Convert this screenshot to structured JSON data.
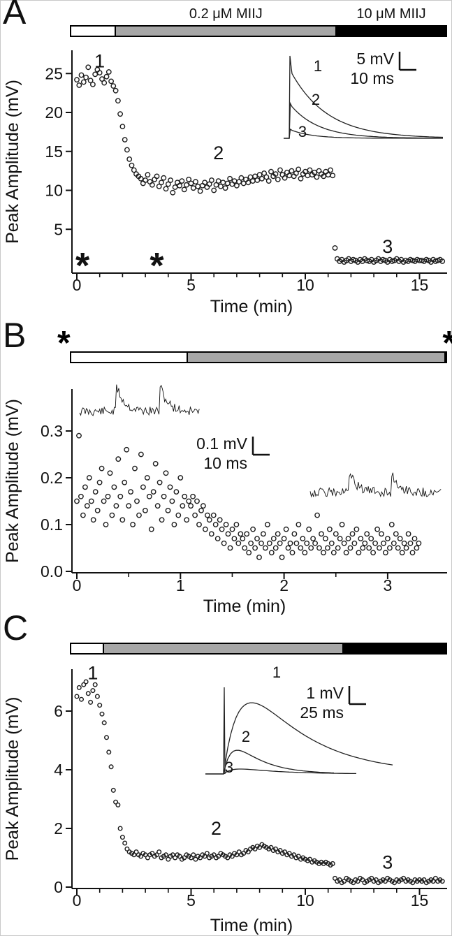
{
  "panels": [
    {
      "letter": "A",
      "asterisks_above_bar": []
    },
    {
      "letter": "B",
      "asterisks_above_bar": [
        "*",
        "*"
      ]
    },
    {
      "letter": "C",
      "asterisks_above_bar": []
    }
  ],
  "chart_data": [
    {
      "panel": "A",
      "type": "scatter",
      "marker": "open-circle",
      "xlabel": "Time (min)",
      "ylabel": "Peak Amplitude (mV)",
      "xlim": [
        0,
        16.2
      ],
      "ylim": [
        0,
        28
      ],
      "xticks": [
        0,
        5,
        10,
        15
      ],
      "xminor_step": 1,
      "yticks": [
        5,
        10,
        15,
        20,
        25
      ],
      "x_start": 0,
      "x_step": 0.1,
      "values": [
        24.2,
        23.5,
        24.8,
        23.9,
        24.5,
        25.8,
        24.1,
        23.6,
        24.9,
        25.5,
        25.1,
        24.3,
        23.8,
        24.6,
        25.2,
        24.0,
        23.4,
        22.8,
        21.5,
        19.8,
        18.2,
        16.5,
        15.2,
        14.0,
        13.2,
        12.6,
        12.1,
        11.8,
        11.5,
        10.9,
        11.3,
        12.0,
        11.1,
        10.7,
        11.4,
        11.8,
        10.5,
        11.0,
        11.6,
        10.2,
        10.8,
        11.3,
        9.7,
        10.4,
        11.0,
        10.6,
        11.2,
        10.1,
        10.7,
        11.4,
        10.9,
        10.3,
        11.1,
        10.5,
        9.9,
        10.6,
        11.0,
        10.4,
        10.8,
        11.3,
        10.0,
        10.7,
        11.2,
        10.5,
        11.0,
        10.3,
        10.9,
        11.5,
        10.8,
        11.2,
        10.6,
        11.1,
        11.6,
        10.9,
        11.4,
        11.0,
        11.7,
        11.2,
        11.8,
        11.3,
        12.0,
        11.5,
        12.2,
        11.7,
        11.2,
        12.4,
        11.8,
        12.1,
        11.4,
        12.6,
        12.0,
        11.6,
        12.3,
        11.9,
        12.5,
        11.8,
        12.2,
        12.7,
        11.5,
        12.1,
        12.4,
        11.9,
        12.6,
        12.0,
        12.3,
        11.7,
        12.5,
        12.1,
        11.8,
        12.4,
        12.0,
        12.6,
        11.9,
        2.6,
        1.2,
        0.9,
        1.1,
        0.8,
        1.0,
        1.2,
        0.9,
        1.1,
        1.0,
        0.8,
        1.1,
        0.9,
        1.2,
        1.0,
        0.9,
        1.1,
        0.8,
        1.0,
        1.2,
        0.9,
        1.1,
        1.0,
        0.8,
        1.1,
        0.9,
        1.0,
        1.2,
        0.9,
        1.1,
        0.8,
        1.0,
        0.9,
        1.1,
        1.0,
        0.9,
        1.1,
        1.0,
        1.0,
        0.9,
        1.1,
        1.0,
        0.8,
        1.1,
        0.9,
        1.0,
        1.1,
        0.9
      ],
      "condition_bar": {
        "segments": [
          {
            "label": "",
            "fill": "#ffffff",
            "frac": 0.117
          },
          {
            "label": "0.2 μM MIIJ",
            "fill": "#a7a7a7",
            "frac": 0.592
          },
          {
            "label": "10 μM MIIJ",
            "fill": "#000000",
            "frac": 0.291
          }
        ]
      },
      "annotations": [
        {
          "text": "1",
          "x": 1.0,
          "y": 26.6
        },
        {
          "text": "2",
          "x": 6.2,
          "y": 14.8
        },
        {
          "text": "3",
          "x": 13.6,
          "y": 2.8
        },
        {
          "text": "*",
          "x": 0.25,
          "y": 1.0,
          "kind": "asterisk"
        },
        {
          "text": "*",
          "x": 3.5,
          "y": 1.0,
          "kind": "asterisk"
        }
      ],
      "inset": {
        "trace_labels": [
          "1",
          "2",
          "3"
        ],
        "scale_bar": {
          "vertical": "5 mV",
          "horizontal": "10 ms"
        }
      }
    },
    {
      "panel": "B",
      "type": "scatter",
      "marker": "open-circle",
      "xlabel": "Time (min)",
      "ylabel": "Peak Amplitude (mV)",
      "xlim": [
        0,
        3.35
      ],
      "ylim": [
        0,
        0.38
      ],
      "xticks": [
        0,
        1,
        2,
        3
      ],
      "xminor_step": 0.5,
      "yticks": [
        0.0,
        0.1,
        0.2,
        0.3
      ],
      "ytick_decimals": 1,
      "x_start": 0,
      "x_step": 0.02,
      "values": [
        0.15,
        0.29,
        0.16,
        0.12,
        0.18,
        0.14,
        0.2,
        0.15,
        0.11,
        0.17,
        0.13,
        0.19,
        0.22,
        0.15,
        0.1,
        0.16,
        0.21,
        0.12,
        0.18,
        0.14,
        0.24,
        0.16,
        0.11,
        0.19,
        0.26,
        0.14,
        0.17,
        0.1,
        0.22,
        0.15,
        0.12,
        0.25,
        0.18,
        0.13,
        0.2,
        0.16,
        0.09,
        0.17,
        0.23,
        0.14,
        0.19,
        0.11,
        0.16,
        0.21,
        0.13,
        0.18,
        0.15,
        0.1,
        0.17,
        0.12,
        0.2,
        0.14,
        0.16,
        0.11,
        0.15,
        0.14,
        0.16,
        0.12,
        0.15,
        0.1,
        0.13,
        0.14,
        0.09,
        0.12,
        0.11,
        0.08,
        0.12,
        0.1,
        0.07,
        0.11,
        0.09,
        0.06,
        0.1,
        0.08,
        0.05,
        0.09,
        0.07,
        0.1,
        0.06,
        0.08,
        0.07,
        0.05,
        0.08,
        0.04,
        0.06,
        0.09,
        0.05,
        0.07,
        0.03,
        0.06,
        0.08,
        0.05,
        0.1,
        0.06,
        0.04,
        0.07,
        0.05,
        0.08,
        0.06,
        0.03,
        0.07,
        0.09,
        0.05,
        0.06,
        0.04,
        0.08,
        0.06,
        0.1,
        0.05,
        0.07,
        0.04,
        0.06,
        0.09,
        0.05,
        0.07,
        0.06,
        0.12,
        0.05,
        0.08,
        0.04,
        0.07,
        0.05,
        0.09,
        0.06,
        0.04,
        0.08,
        0.05,
        0.07,
        0.1,
        0.06,
        0.04,
        0.07,
        0.05,
        0.08,
        0.06,
        0.09,
        0.04,
        0.07,
        0.05,
        0.06,
        0.08,
        0.05,
        0.07,
        0.04,
        0.06,
        0.09,
        0.05,
        0.08,
        0.06,
        0.04,
        0.07,
        0.05,
        0.1,
        0.06,
        0.08,
        0.05,
        0.07,
        0.04,
        0.06,
        0.05,
        0.08,
        0.06,
        0.04,
        0.07,
        0.05,
        0.06
      ],
      "condition_bar": {
        "segments": [
          {
            "label": "",
            "fill": "#ffffff",
            "frac": 0.311
          },
          {
            "label": "",
            "fill": "#a7a7a7",
            "frac": 0.689
          }
        ]
      },
      "annotations": [],
      "inset": {
        "trace_labels": [],
        "scale_bar": {
          "vertical": "0.1 mV",
          "horizontal": "10 ms"
        }
      }
    },
    {
      "panel": "C",
      "type": "scatter",
      "marker": "open-circle",
      "xlabel": "Time (min)",
      "ylabel": "Peak Amplitude (mV)",
      "xlim": [
        0,
        16.2
      ],
      "ylim": [
        0,
        7.6
      ],
      "xticks": [
        0,
        5,
        10,
        15
      ],
      "xminor_step": 1,
      "yticks": [
        0,
        2,
        4,
        6
      ],
      "x_start": 0,
      "x_step": 0.1,
      "values": [
        6.5,
        6.8,
        6.4,
        6.9,
        7.0,
        6.6,
        6.3,
        6.7,
        6.9,
        6.5,
        6.2,
        5.9,
        5.6,
        5.1,
        4.6,
        4.1,
        3.3,
        2.9,
        2.8,
        2.0,
        1.7,
        1.5,
        1.3,
        1.2,
        1.15,
        1.1,
        1.2,
        1.1,
        1.05,
        1.15,
        1.1,
        1.0,
        1.1,
        1.15,
        1.05,
        1.1,
        1.2,
        1.0,
        1.05,
        1.1,
        0.95,
        1.05,
        1.1,
        1.0,
        1.1,
        1.05,
        0.95,
        1.0,
        1.1,
        1.05,
        1.0,
        1.1,
        0.95,
        1.05,
        1.0,
        1.1,
        1.05,
        1.15,
        1.0,
        1.05,
        1.1,
        1.0,
        1.05,
        1.15,
        1.1,
        1.05,
        1.0,
        1.1,
        1.05,
        1.15,
        1.1,
        1.2,
        1.1,
        1.15,
        1.25,
        1.2,
        1.3,
        1.35,
        1.3,
        1.4,
        1.35,
        1.45,
        1.4,
        1.35,
        1.3,
        1.35,
        1.25,
        1.3,
        1.2,
        1.25,
        1.15,
        1.2,
        1.1,
        1.15,
        1.05,
        1.1,
        1.0,
        1.05,
        0.95,
        1.0,
        0.95,
        0.9,
        0.95,
        0.85,
        0.9,
        0.85,
        0.8,
        0.85,
        0.8,
        0.85,
        0.8,
        0.75,
        0.8,
        0.3,
        0.2,
        0.25,
        0.15,
        0.2,
        0.3,
        0.25,
        0.2,
        0.15,
        0.25,
        0.2,
        0.3,
        0.25,
        0.15,
        0.2,
        0.25,
        0.3,
        0.2,
        0.25,
        0.15,
        0.2,
        0.25,
        0.2,
        0.3,
        0.25,
        0.2,
        0.15,
        0.25,
        0.2,
        0.25,
        0.3,
        0.2,
        0.25,
        0.2,
        0.15,
        0.25,
        0.2,
        0.25,
        0.2,
        0.25,
        0.15,
        0.2,
        0.25,
        0.2,
        0.3,
        0.2,
        0.25,
        0.2
      ],
      "condition_bar": {
        "segments": [
          {
            "label": "",
            "fill": "#ffffff",
            "frac": 0.085
          },
          {
            "label": "",
            "fill": "#a7a7a7",
            "frac": 0.641
          },
          {
            "label": "",
            "fill": "#000000",
            "frac": 0.274
          }
        ]
      },
      "annotations": [
        {
          "text": "1",
          "x": 0.7,
          "y": 7.3
        },
        {
          "text": "2",
          "x": 6.1,
          "y": 2.0
        },
        {
          "text": "3",
          "x": 13.6,
          "y": 0.85
        }
      ],
      "inset": {
        "trace_labels": [
          "1",
          "2",
          "3"
        ],
        "scale_bar": {
          "vertical": "1 mV",
          "horizontal": "25 ms"
        }
      }
    }
  ]
}
